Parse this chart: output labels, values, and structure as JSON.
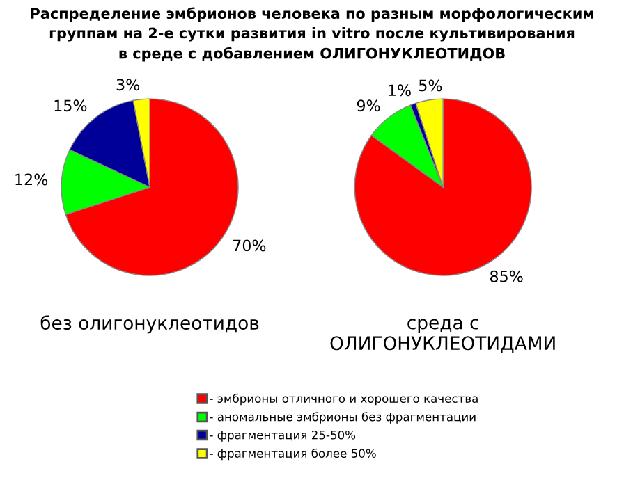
{
  "chart_data": [
    {
      "type": "pie",
      "title": "Распределение эмбрионов человека по разным морфологическим\nгруппам на 2-е сутки развития in vitro после культивирования\nв среде с добавлением ОЛИГОНУКЛЕОТИДОВ",
      "categories": [
        "- эмбрионы отличного и хорошего качества",
        "- аномальные эмбрионы без фрагментации",
        "- фрагментация 25-50%",
        "- фрагментация более 50%"
      ],
      "values": [
        70,
        12,
        15,
        3
      ],
      "value_labels": [
        "70%",
        "12%",
        "15%",
        "3%"
      ],
      "colors": [
        "#ff0000",
        "#00ff00",
        "#000099",
        "#ffff00"
      ],
      "xlabel": "без олигонуклеотидов",
      "legend": "bottom"
    },
    {
      "type": "pie",
      "categories": [
        null,
        null,
        null,
        null
      ],
      "values": [
        85,
        9,
        1,
        5
      ],
      "value_labels": [
        "85%",
        "9%",
        "1%",
        "5%"
      ],
      "colors": [
        "#ff0000",
        "#00ff00",
        "#000099",
        "#ffff00"
      ],
      "xlabel": "среда с\nОЛИГОНУКЛЕОТИДАМИ"
    }
  ]
}
